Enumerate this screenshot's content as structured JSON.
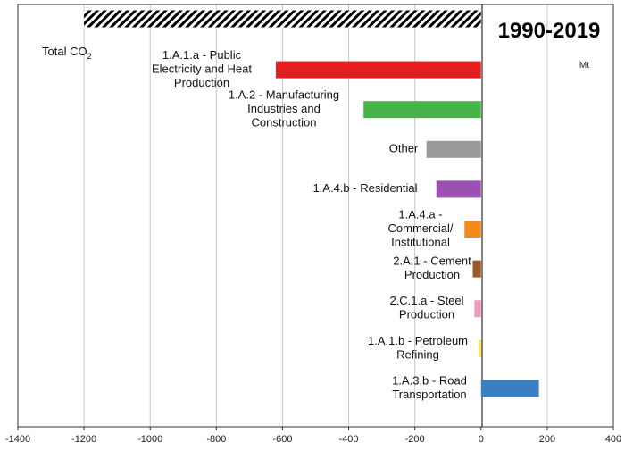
{
  "chart_data": {
    "type": "bar",
    "orientation": "horizontal",
    "title": "1990-2019",
    "unit": "Mt",
    "xlim": [
      -1400,
      400
    ],
    "x_ticks": [
      -1400,
      -1200,
      -1000,
      -800,
      -600,
      -400,
      -200,
      0,
      200,
      400
    ],
    "grid": "vertical",
    "categories": [
      "Total CO2",
      "1.A.1.a - Public Electricity and Heat Production",
      "1.A.2 - Manufacturing Industries and Construction",
      "Other",
      "1.A.4.b - Residential",
      "1.A.4.a - Commercial/ Institutional",
      "2.A.1 - Cement Production",
      "2.C.1.a - Steel Production",
      "1.A.1.b - Petroleum Refining",
      "1.A.3.b - Road Transportation"
    ],
    "values": [
      -1200,
      -620,
      -355,
      -165,
      -135,
      -50,
      -25,
      -20,
      -8,
      175
    ],
    "colors": [
      "#000000",
      "#e31e1e",
      "#46b449",
      "#999999",
      "#9b51b0",
      "#f08a1c",
      "#a0582a",
      "#f19ac0",
      "#f5e34a",
      "#3b7fc2"
    ],
    "patterns": [
      "diagonal-hatch",
      "solid",
      "solid",
      "solid",
      "solid",
      "solid",
      "solid",
      "solid",
      "solid",
      "solid"
    ],
    "label_lines": [
      [
        "Total CO",
        "2"
      ],
      [
        "1.A.1.a - Public",
        "Electricity and Heat",
        "Production"
      ],
      [
        "1.A.2 - Manufacturing",
        "Industries and",
        "Construction"
      ],
      [
        "Other"
      ],
      [
        "1.A.4.b - Residential"
      ],
      [
        "1.A.4.a -",
        "Commercial/",
        "Institutional"
      ],
      [
        "2.A.1 - Cement",
        "Production"
      ],
      [
        "2.C.1.a - Steel",
        "Production"
      ],
      [
        "1.A.1.b - Petroleum",
        "Refining"
      ],
      [
        "1.A.3.b - Road",
        "Transportation"
      ]
    ]
  }
}
